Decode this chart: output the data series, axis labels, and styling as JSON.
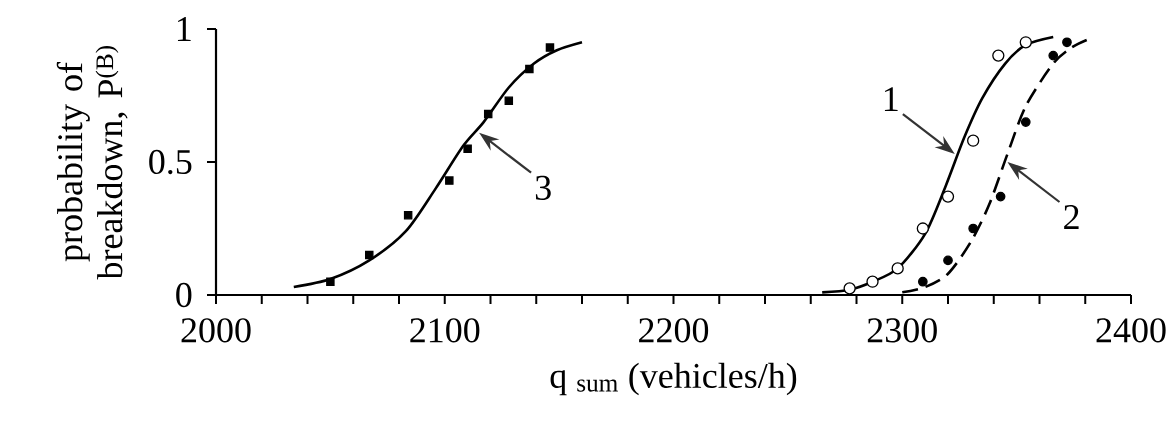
{
  "chart_data": {
    "type": "scatter",
    "xlabel": "q $_{sum}$ (vehicles/h)",
    "ylabel": "probability of breakdown, P$^{(B)}$",
    "xlim": [
      2000,
      2400
    ],
    "ylim": [
      0,
      1
    ],
    "xticks": [
      2000,
      {
        "value": 2020,
        "label": null
      },
      {
        "value": 2040,
        "label": null
      },
      {
        "value": 2060,
        "label": null
      },
      {
        "value": 2080,
        "label": null
      },
      2100,
      {
        "value": 2120,
        "label": null
      },
      {
        "value": 2140,
        "label": null
      },
      {
        "value": 2160,
        "label": null
      },
      {
        "value": 2180,
        "label": null
      },
      2200,
      {
        "value": 2220,
        "label": null
      },
      {
        "value": 2240,
        "label": null
      },
      {
        "value": 2260,
        "label": null
      },
      {
        "value": 2280,
        "label": null
      },
      2300,
      {
        "value": 2320,
        "label": null
      },
      {
        "value": 2340,
        "label": null
      },
      {
        "value": 2360,
        "label": null
      },
      {
        "value": 2380,
        "label": null
      },
      2400
    ],
    "yticks": [
      0,
      0.5,
      1
    ],
    "series": [
      {
        "marker": "square",
        "color": "#000000",
        "x": [
          2050,
          2067,
          2084,
          2102,
          2110,
          2119,
          2128,
          2137,
          2146
        ],
        "values": [
          0.05,
          0.15,
          0.3,
          0.43,
          0.55,
          0.68,
          0.73,
          0.85,
          0.93
        ]
      },
      {
        "type": "line",
        "line_style": "solid",
        "color": "#000000",
        "x": [
          2034,
          2050,
          2067,
          2083,
          2096,
          2108,
          2117,
          2128,
          2139,
          2149,
          2160
        ],
        "values": [
          0.03,
          0.06,
          0.13,
          0.24,
          0.4,
          0.56,
          0.65,
          0.78,
          0.87,
          0.92,
          0.95
        ]
      },
      {
        "marker": "circle",
        "color": "#ffffff",
        "x": [
          2277,
          2287,
          2298,
          2309,
          2320,
          2331,
          2342,
          2354
        ],
        "values": [
          0.025,
          0.05,
          0.1,
          0.25,
          0.37,
          0.58,
          0.9,
          0.95
        ]
      },
      {
        "type": "line",
        "line_style": "solid",
        "color": "#000000",
        "x": [
          2265,
          2277,
          2287,
          2298,
          2310,
          2319,
          2327,
          2335,
          2345,
          2354,
          2366
        ],
        "values": [
          0.01,
          0.02,
          0.05,
          0.1,
          0.23,
          0.41,
          0.59,
          0.74,
          0.87,
          0.94,
          0.97
        ]
      },
      {
        "marker": "circle",
        "color": "#000000",
        "x": [
          2309,
          2320,
          2331,
          2343,
          2354,
          2366,
          2372
        ],
        "values": [
          0.05,
          0.13,
          0.25,
          0.37,
          0.65,
          0.9,
          0.95
        ]
      },
      {
        "type": "line",
        "line_style": "dashed",
        "color": "#000000",
        "x": [
          2300,
          2310,
          2320,
          2330,
          2338,
          2346,
          2354,
          2366,
          2374,
          2381
        ],
        "values": [
          0.01,
          0.03,
          0.08,
          0.2,
          0.34,
          0.53,
          0.71,
          0.87,
          0.93,
          0.96
        ]
      }
    ],
    "annotations": [
      {
        "text": "1",
        "x": 2323,
        "y": 0.53
      },
      {
        "text": "2",
        "x": 2346,
        "y": 0.5
      },
      {
        "text": "3",
        "x": 2115,
        "y": 0.61
      }
    ],
    "grid": false
  }
}
